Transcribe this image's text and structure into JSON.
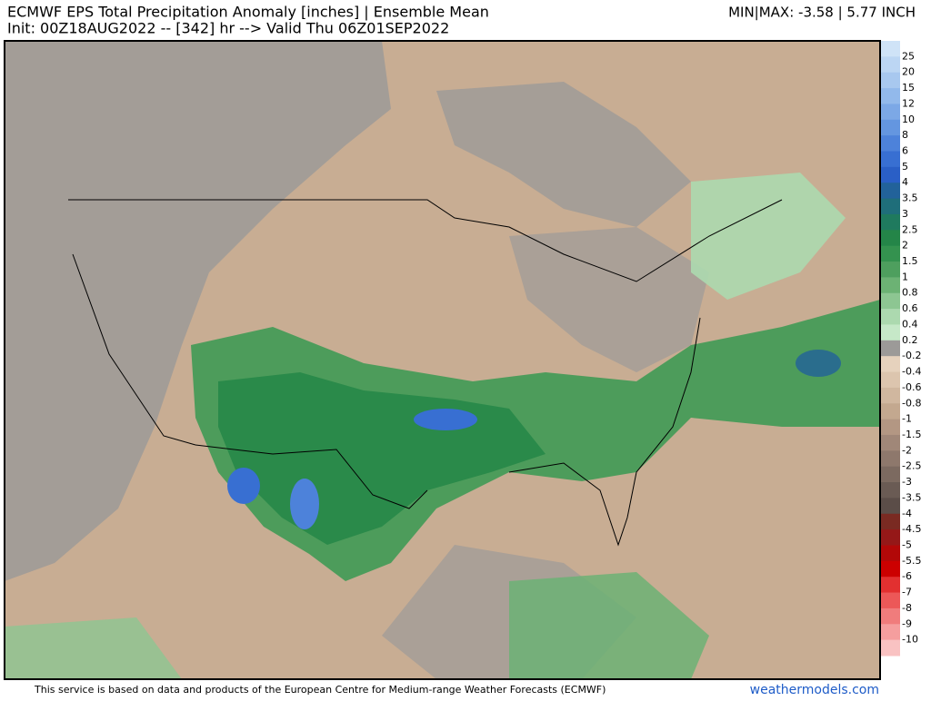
{
  "header": {
    "title": "ECMWF EPS Total Precipitation Anomaly [inches] | Ensemble Mean",
    "init": "Init: 00Z18AUG2022 -- [342] hr --> Valid Thu 06Z01SEP2022",
    "minmax": "MIN|MAX: -3.58 | 5.77 INCH"
  },
  "colorbar": {
    "labels": [
      "25",
      "20",
      "15",
      "12",
      "10",
      "8",
      "6",
      "5",
      "4",
      "3.5",
      "3",
      "2.5",
      "2",
      "1.5",
      "1",
      "0.8",
      "0.6",
      "0.4",
      "0.2",
      "-0.2",
      "-0.4",
      "-0.6",
      "-0.8",
      "-1",
      "-1.5",
      "-2",
      "-2.5",
      "-3",
      "-3.5",
      "-4",
      "-4.5",
      "-5",
      "-5.5",
      "-6",
      "-7",
      "-8",
      "-9",
      "-10"
    ],
    "colors": [
      "#cfe3f7",
      "#bcd6f3",
      "#a8c8ef",
      "#92b9eb",
      "#7ca8e6",
      "#6496e0",
      "#4d82da",
      "#386fd2",
      "#2a5fc6",
      "#22629a",
      "#1f6e7a",
      "#1f7a5e",
      "#248548",
      "#34924f",
      "#4e9f5e",
      "#6cb274",
      "#8dc692",
      "#acd9af",
      "#c6e8c8",
      "#9c9a98",
      "#e6d2bd",
      "#dcc5ae",
      "#d0b79f",
      "#c3a88f",
      "#b39783",
      "#a08778",
      "#8e786c",
      "#7c6a60",
      "#6a5b54",
      "#5b4d48",
      "#7a2a22",
      "#951818",
      "#b20808",
      "#cc0000",
      "#e23030",
      "#ec5858",
      "#f07c7c",
      "#f59e9e",
      "#f9c2c2"
    ]
  },
  "footer": {
    "credit": "This service is based on data and products of the European Centre for Medium-range Weather Forecasts (ECMWF)",
    "brand": "weathermodels.com"
  }
}
